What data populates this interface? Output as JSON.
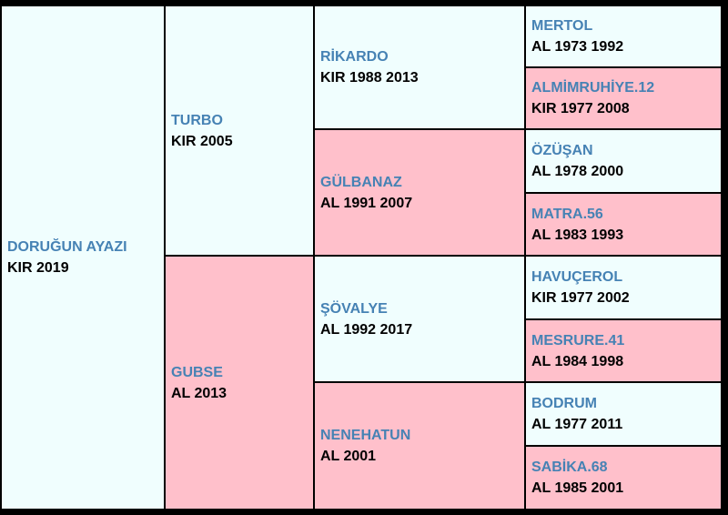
{
  "pedigree": {
    "subject": {
      "name": "DORUĞUN AYAZI",
      "info": "KIR 2019",
      "sex": "male"
    },
    "sire": {
      "name": "TURBO",
      "info": "KIR 2005",
      "sex": "male"
    },
    "dam": {
      "name": "GUBSE",
      "info": "AL 2013",
      "sex": "female"
    },
    "gen3": [
      {
        "name": "RİKARDO",
        "info": "KIR 1988 2013",
        "sex": "male"
      },
      {
        "name": "GÜLBANAZ",
        "info": "AL 1991 2007",
        "sex": "female"
      },
      {
        "name": "ŞÖVALYE",
        "info": "AL 1992 2017",
        "sex": "male"
      },
      {
        "name": "NENEHATUN",
        "info": "AL 2001",
        "sex": "female"
      }
    ],
    "gen4": [
      {
        "name": "MERTOL",
        "info": "AL 1973 1992",
        "sex": "male"
      },
      {
        "name": "ALMİMRUHİYE.12",
        "info": "KIR 1977 2008",
        "sex": "female"
      },
      {
        "name": "ÖZÜŞAN",
        "info": "AL 1978 2000",
        "sex": "male"
      },
      {
        "name": "MATRA.56",
        "info": "AL 1983 1993",
        "sex": "female"
      },
      {
        "name": "HAVUÇEROL",
        "info": "KIR 1977 2002",
        "sex": "male"
      },
      {
        "name": "MESRURE.41",
        "info": "AL 1984 1998",
        "sex": "female"
      },
      {
        "name": "BODRUM",
        "info": "AL 1977 2011",
        "sex": "male"
      },
      {
        "name": "SABİKA.68",
        "info": "AL 1985 2001",
        "sex": "female"
      }
    ],
    "colors": {
      "male_bg": "#f0fefe",
      "female_bg": "#ffc0cb",
      "name_text": "#4682b4",
      "info_text": "#000000",
      "border": "#000000"
    }
  }
}
